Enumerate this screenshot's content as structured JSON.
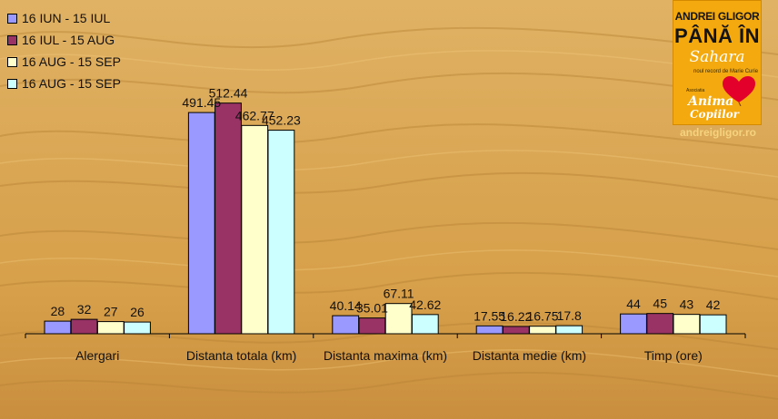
{
  "chart_data": {
    "type": "bar",
    "categories": [
      "Alergari",
      "Distanta totala (km)",
      "Distanta maxima (km)",
      "Distanta medie (km)",
      "Timp (ore)"
    ],
    "series": [
      {
        "name": "16 IUN - 15 IUL",
        "color": "#9999ff",
        "values": [
          28,
          491.45,
          40.14,
          17.55,
          44
        ],
        "labels": [
          "28",
          "491.45",
          "40.14",
          "17.55",
          "44"
        ]
      },
      {
        "name": "16 IUL - 15 AUG",
        "color": "#993366",
        "values": [
          32,
          512.44,
          35.01,
          16.22,
          45
        ],
        "labels": [
          "32",
          "512.44",
          "35.01",
          "16.22",
          "45"
        ]
      },
      {
        "name": "16 AUG - 15 SEP",
        "color": "#ffffcc",
        "values": [
          27,
          462.77,
          67.11,
          16.75,
          43
        ],
        "labels": [
          "27",
          "462.77",
          "67.11",
          "16.75",
          "43"
        ]
      },
      {
        "name": "16 AUG - 15 SEP",
        "color": "#ccffff",
        "values": [
          26,
          452.23,
          42.62,
          17.8,
          42
        ],
        "labels": [
          "26",
          "452.23",
          "42.62",
          "17.8",
          "42"
        ]
      }
    ],
    "ylim": [
      0,
      540
    ],
    "grid": false,
    "legend_position": "top-left"
  },
  "logo": {
    "line1": "ANDREI GLIGOR",
    "line2": "PÂNĂ ÎN",
    "line3": "Sahara",
    "line4": "noul record de Marie Curie",
    "line5": "Asociatia",
    "line6": "Anima",
    "line7": "Copiilor",
    "website": "andreigligor.ro"
  }
}
